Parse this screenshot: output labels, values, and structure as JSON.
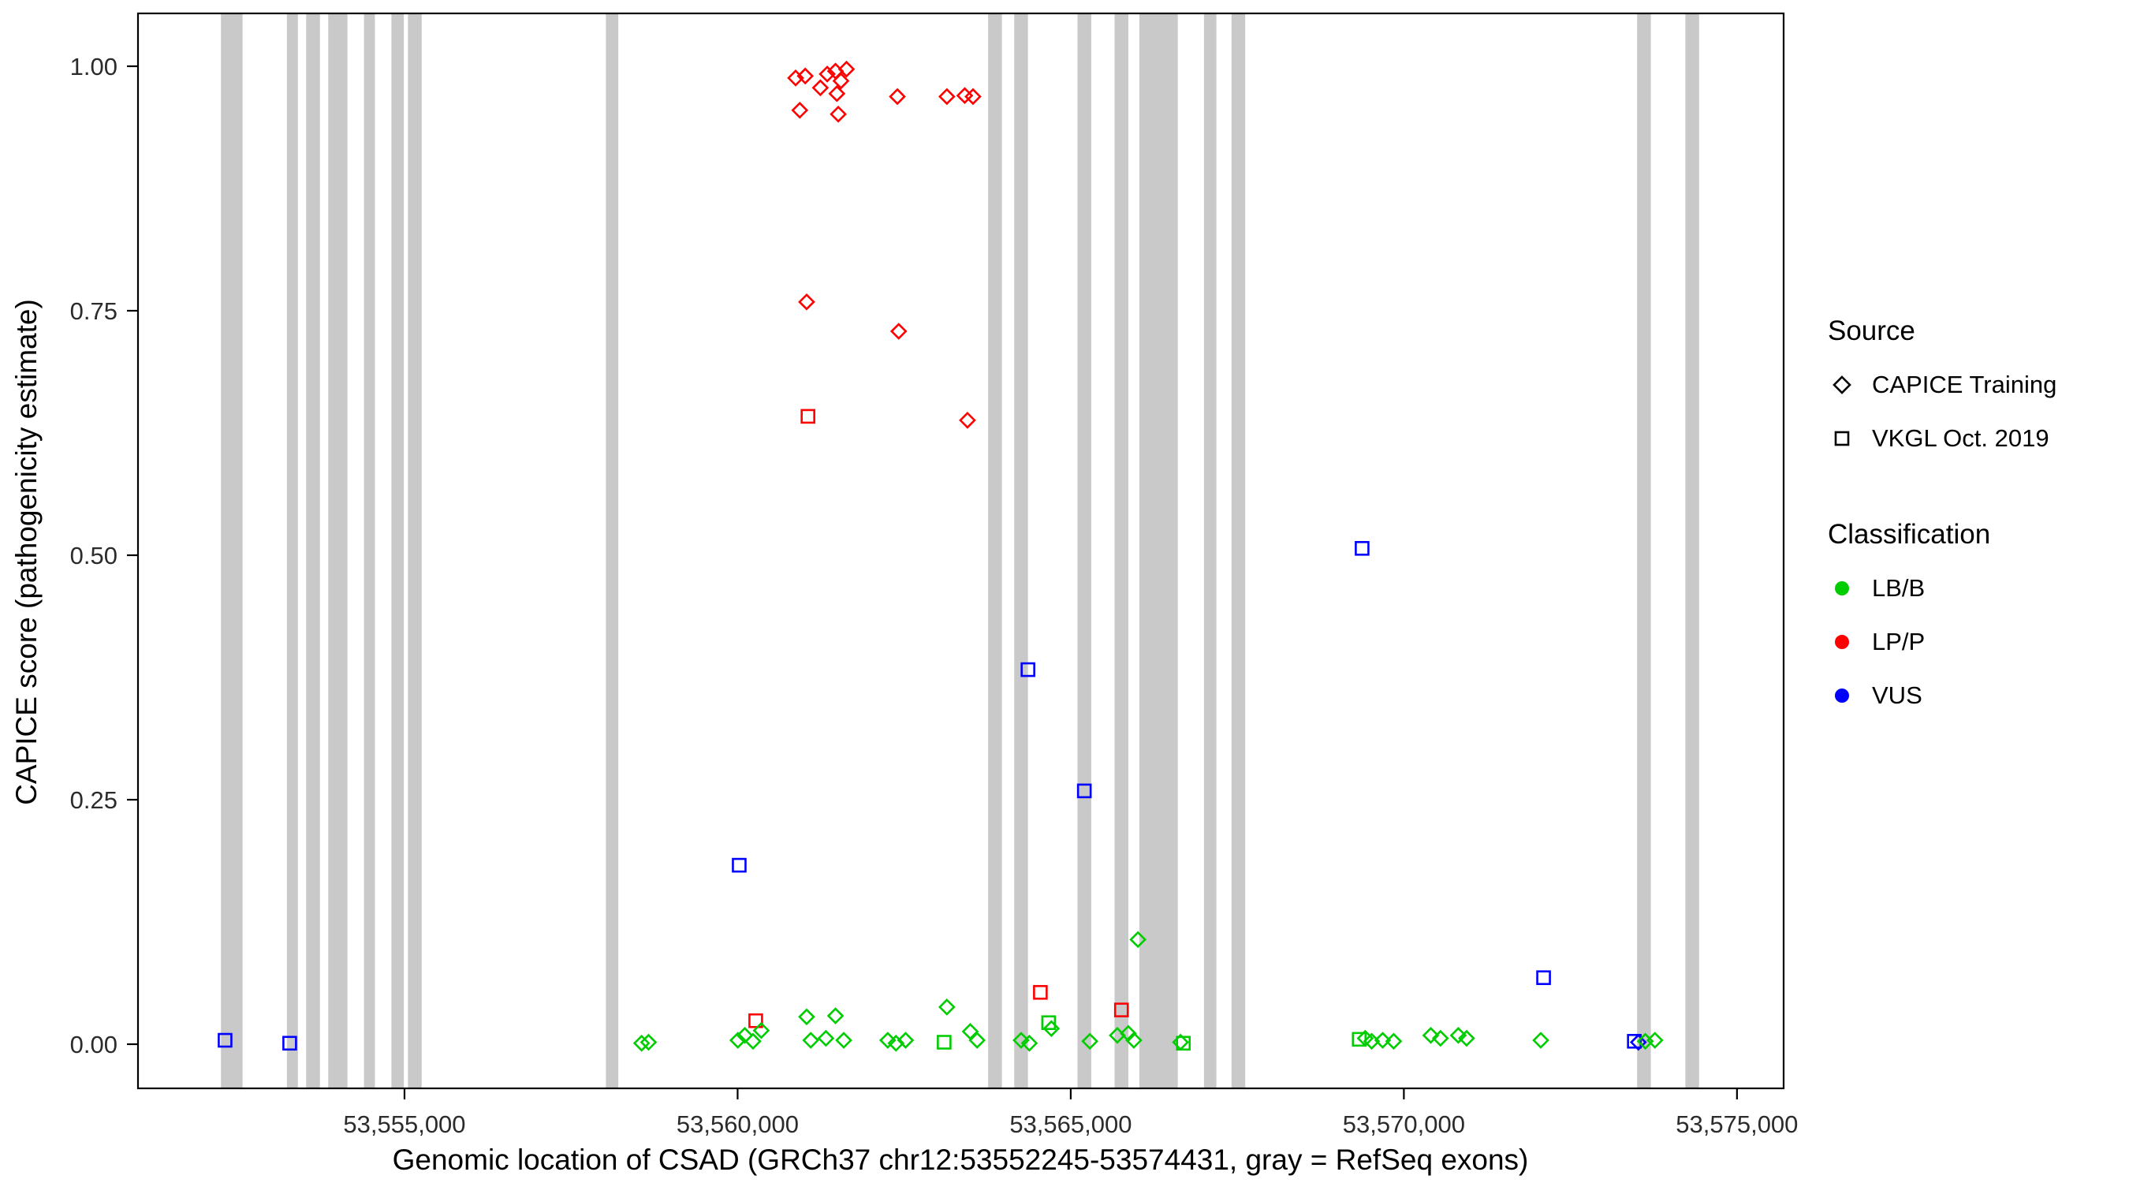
{
  "colors": {
    "lbb": "#00CD00",
    "lpp": "#FF0000",
    "vus": "#0000FF",
    "exon": "#C9C9C9",
    "axis": "#000000",
    "tick_label": "#2B2B2B"
  },
  "legend": {
    "source": {
      "title": "Source",
      "items": [
        {
          "label": "CAPICE Training",
          "shape": "diamond"
        },
        {
          "label": "VKGL Oct. 2019",
          "shape": "square"
        }
      ]
    },
    "classification": {
      "title": "Classification",
      "items": [
        {
          "label": "LB/B",
          "color": "#00CD00"
        },
        {
          "label": "LP/P",
          "color": "#FF0000"
        },
        {
          "label": "VUS",
          "color": "#0000FF"
        }
      ]
    }
  },
  "chart_data": {
    "type": "scatter",
    "title": "",
    "xlabel": "Genomic location of CSAD (GRCh37 chr12:53552245-53574431, gray = RefSeq exons)",
    "ylabel": "CAPICE score (pathogenicity estimate)",
    "xlim": [
      53551000,
      53575700
    ],
    "ylim": [
      0,
      1
    ],
    "grid": false,
    "legend_position": "right",
    "x_ticks": [
      {
        "value": 53555000,
        "label": "53,555,000"
      },
      {
        "value": 53560000,
        "label": "53,560,000"
      },
      {
        "value": 53565000,
        "label": "53,565,000"
      },
      {
        "value": 53570000,
        "label": "53,570,000"
      },
      {
        "value": 53575000,
        "label": "53,575,000"
      }
    ],
    "y_ticks": [
      {
        "value": 0,
        "label": "0.00"
      },
      {
        "value": 0.25,
        "label": "0.25"
      },
      {
        "value": 0.5,
        "label": "0.50"
      },
      {
        "value": 0.75,
        "label": "0.75"
      },
      {
        "value": 1,
        "label": "1.00"
      }
    ],
    "exons": [
      [
        53552245,
        53552570
      ],
      [
        53553235,
        53553400
      ],
      [
        53553524,
        53553731
      ],
      [
        53553855,
        53554144
      ],
      [
        53554392,
        53554556
      ],
      [
        53554804,
        53554990
      ],
      [
        53555052,
        53555258
      ],
      [
        53558023,
        53558209
      ],
      [
        53563760,
        53563967
      ],
      [
        53564152,
        53564358
      ],
      [
        53565101,
        53565308
      ],
      [
        53565658,
        53565865
      ],
      [
        53566030,
        53566607
      ],
      [
        53567000,
        53567186
      ],
      [
        53567413,
        53567619
      ],
      [
        53573501,
        53573707
      ],
      [
        53574225,
        53574431
      ]
    ],
    "series": [
      {
        "name": "CAPICE Training / LP/P",
        "source": "CAPICE Training",
        "classification": "LP/P",
        "shape": "diamond",
        "color_key": "lpp",
        "points": [
          [
            53560871,
            0.988
          ],
          [
            53561015,
            0.99
          ],
          [
            53560933,
            0.955
          ],
          [
            53561242,
            0.978
          ],
          [
            53561345,
            0.992
          ],
          [
            53561469,
            0.995
          ],
          [
            53561551,
            0.985
          ],
          [
            53561634,
            0.997
          ],
          [
            53561490,
            0.972
          ],
          [
            53561511,
            0.951
          ],
          [
            53562398,
            0.969
          ],
          [
            53563141,
            0.969
          ],
          [
            53563409,
            0.97
          ],
          [
            53563533,
            0.969
          ],
          [
            53561036,
            0.759
          ],
          [
            53562418,
            0.729
          ],
          [
            53563450,
            0.638
          ]
        ]
      },
      {
        "name": "VKGL Oct. 2019 / LP/P",
        "source": "VKGL Oct. 2019",
        "classification": "LP/P",
        "shape": "square",
        "color_key": "lpp",
        "points": [
          [
            53561056,
            0.642
          ],
          [
            53560272,
            0.024
          ],
          [
            53564544,
            0.053
          ],
          [
            53565761,
            0.035
          ]
        ]
      },
      {
        "name": "VKGL Oct. 2019 / VUS",
        "source": "VKGL Oct. 2019",
        "classification": "VUS",
        "shape": "square",
        "color_key": "vus",
        "points": [
          [
            53552307,
            0.004
          ],
          [
            53553277,
            0.001
          ],
          [
            53560024,
            0.183
          ],
          [
            53564358,
            0.383
          ],
          [
            53565204,
            0.259
          ],
          [
            53569373,
            0.507
          ],
          [
            53572097,
            0.068
          ],
          [
            53573459,
            0.003
          ]
        ]
      },
      {
        "name": "CAPICE Training / VUS",
        "source": "CAPICE Training",
        "classification": "VUS",
        "shape": "diamond",
        "color_key": "vus",
        "points": [
          [
            53573520,
            0.002
          ]
        ]
      },
      {
        "name": "VKGL Oct. 2019 / LB/B",
        "source": "VKGL Oct. 2019",
        "classification": "LB/B",
        "shape": "square",
        "color_key": "lbb",
        "points": [
          [
            53563100,
            0.002
          ],
          [
            53564668,
            0.022
          ],
          [
            53566690,
            0.001
          ],
          [
            53569330,
            0.005
          ]
        ]
      },
      {
        "name": "CAPICE Training / LB/B",
        "source": "CAPICE Training",
        "classification": "LB/B",
        "shape": "diamond",
        "color_key": "lbb",
        "points": [
          [
            53558559,
            0.001
          ],
          [
            53558663,
            0.002
          ],
          [
            53560004,
            0.004
          ],
          [
            53560107,
            0.009
          ],
          [
            53560231,
            0.003
          ],
          [
            53560355,
            0.014
          ],
          [
            53561036,
            0.028
          ],
          [
            53561098,
            0.004
          ],
          [
            53561325,
            0.006
          ],
          [
            53561469,
            0.029
          ],
          [
            53561593,
            0.004
          ],
          [
            53562253,
            0.004
          ],
          [
            53562377,
            0.001
          ],
          [
            53562521,
            0.004
          ],
          [
            53563141,
            0.038
          ],
          [
            53563492,
            0.013
          ],
          [
            53563595,
            0.004
          ],
          [
            53564255,
            0.004
          ],
          [
            53564379,
            0.001
          ],
          [
            53564709,
            0.016
          ],
          [
            53565287,
            0.003
          ],
          [
            53565699,
            0.009
          ],
          [
            53565864,
            0.011
          ],
          [
            53565947,
            0.004
          ],
          [
            53566009,
            0.107
          ],
          [
            53566648,
            0.002
          ],
          [
            53569420,
            0.006
          ],
          [
            53569517,
            0.003
          ],
          [
            53569682,
            0.004
          ],
          [
            53569847,
            0.003
          ],
          [
            53570404,
            0.009
          ],
          [
            53570549,
            0.006
          ],
          [
            53570817,
            0.009
          ],
          [
            53570941,
            0.006
          ],
          [
            53572055,
            0.004
          ],
          [
            53573624,
            0.003
          ],
          [
            53573768,
            0.004
          ]
        ]
      }
    ]
  }
}
